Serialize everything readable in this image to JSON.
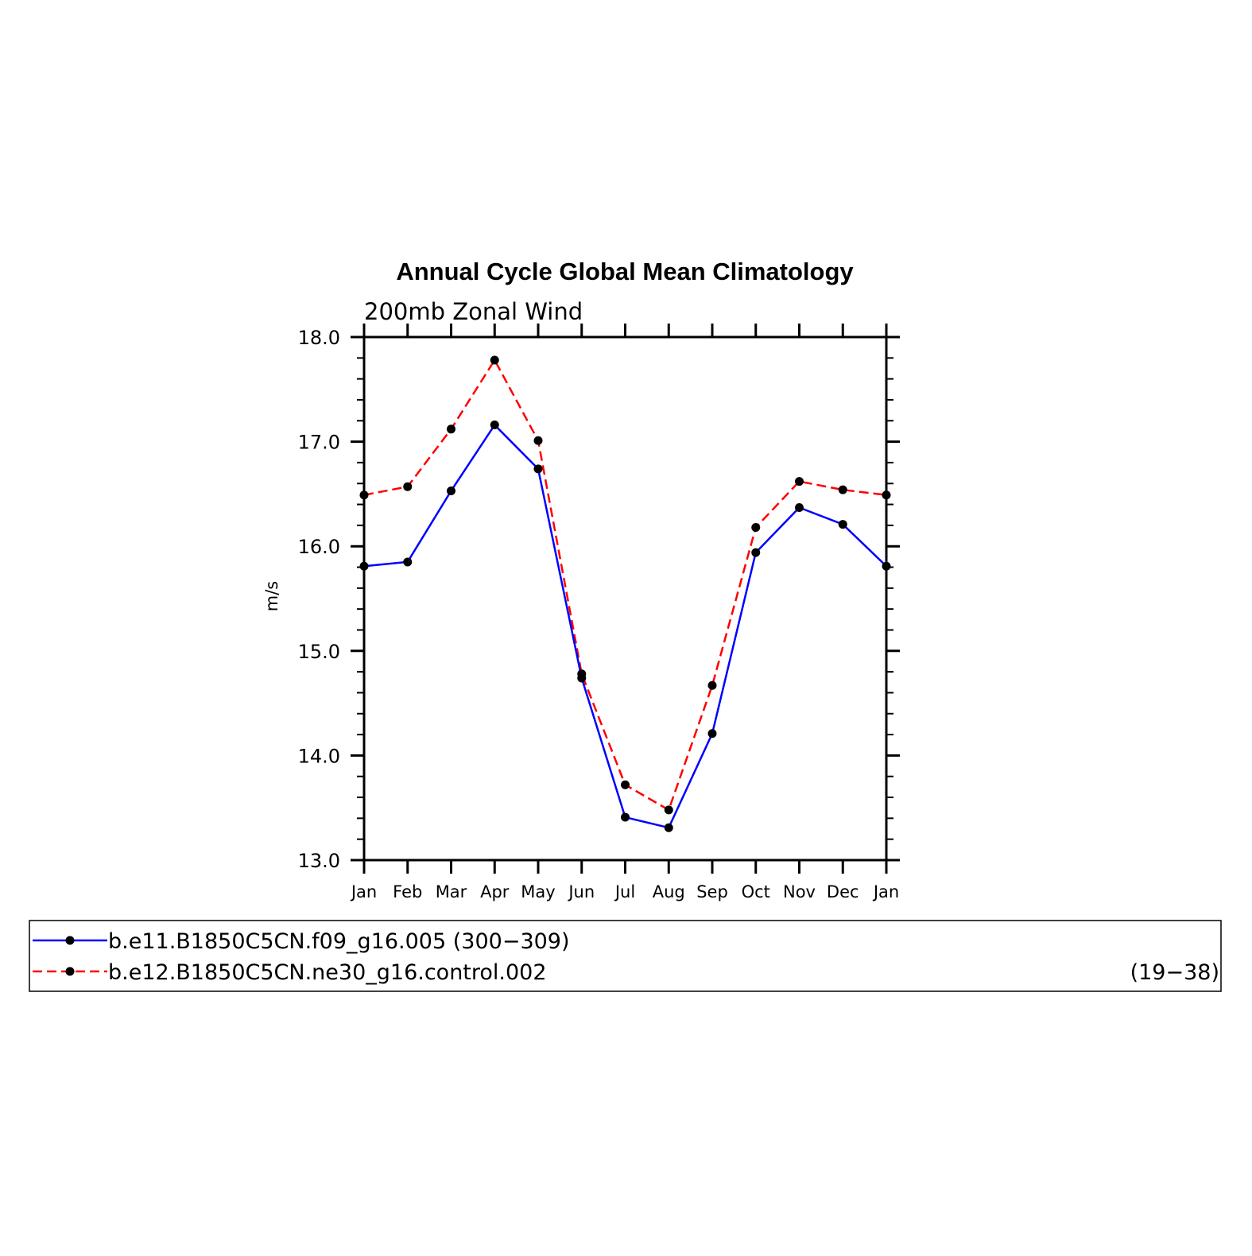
{
  "chart_data": {
    "type": "line",
    "title": "Annual Cycle Global Mean Climatology",
    "subtitle": "200mb Zonal Wind",
    "xlabel": "",
    "ylabel": "m/s",
    "categories": [
      "Jan",
      "Feb",
      "Mar",
      "Apr",
      "May",
      "Jun",
      "Jul",
      "Aug",
      "Sep",
      "Oct",
      "Nov",
      "Dec",
      "Jan"
    ],
    "ylim": [
      13.0,
      18.0
    ],
    "yticks": [
      "13.0",
      "14.0",
      "15.0",
      "16.0",
      "17.0",
      "18.0"
    ],
    "grid": false,
    "legend_position": "bottom",
    "series": [
      {
        "name": "b.e11.B1850C5CN.f09_g16.005",
        "years": "(300−309)",
        "color": "#0000ff",
        "dash": "solid",
        "values": [
          15.81,
          15.85,
          16.53,
          17.16,
          16.74,
          14.74,
          13.41,
          13.31,
          14.21,
          15.94,
          16.37,
          16.21,
          15.81
        ]
      },
      {
        "name": "b.e12.B1850C5CN.ne30_g16.control.002",
        "years": "(19−38)",
        "color": "#ff0000",
        "dash": "dashed",
        "values": [
          16.49,
          16.57,
          17.12,
          17.78,
          17.01,
          14.78,
          13.72,
          13.48,
          14.67,
          16.18,
          16.62,
          16.54,
          16.49
        ]
      }
    ]
  }
}
